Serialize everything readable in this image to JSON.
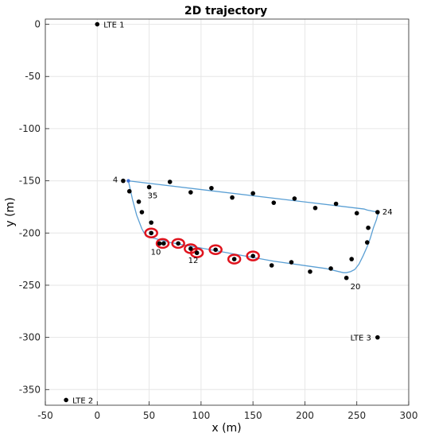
{
  "chart_data": {
    "type": "line",
    "title": "2D trajectory",
    "xlabel": "x (m)",
    "ylabel": "y (m)",
    "xlim": [
      -50,
      300
    ],
    "ylim": [
      -365,
      5
    ],
    "xticks": [
      -50,
      0,
      50,
      100,
      150,
      200,
      250,
      300
    ],
    "yticks": [
      0,
      -50,
      -100,
      -150,
      -200,
      -250,
      -300,
      -350
    ],
    "grid": true,
    "colors": {
      "trajectory": "#5a9fd4",
      "points": "#000000",
      "highlight": "#e0141e",
      "grid": "#e6e6e6",
      "axis": "#262626"
    },
    "series": [
      {
        "kind": "trajectory",
        "x": [
          30,
          257,
          260,
          270,
          271,
          270,
          269,
          266,
          263,
          260,
          256,
          252,
          248,
          244,
          240,
          237,
          220,
          170,
          120,
          70,
          47,
          43,
          38,
          34,
          30
        ],
        "y": [
          -150,
          -177,
          -178,
          -180,
          -181,
          -183,
          -187,
          -195,
          -205,
          -213,
          -222,
          -230,
          -235,
          -237,
          -238,
          -238,
          -234,
          -227,
          -218,
          -209,
          -203,
          -196,
          -183,
          -168,
          -150
        ]
      },
      {
        "kind": "start",
        "x": [
          30
        ],
        "y": [
          -150
        ]
      },
      {
        "kind": "points",
        "x": [
          25,
          31,
          50,
          70,
          90,
          110,
          130,
          150,
          170,
          190,
          210,
          230,
          250,
          270,
          261,
          260,
          245,
          240,
          225,
          205,
          187,
          168,
          150,
          132,
          114,
          96,
          90,
          78,
          64,
          60,
          52,
          52,
          43,
          40
        ],
        "y": [
          -150,
          -160,
          -156,
          -151,
          -161,
          -157,
          -166,
          -162,
          -171,
          -167,
          -176,
          -172,
          -181,
          -180,
          -195,
          -209,
          -225,
          -243,
          -234,
          -237,
          -228,
          -231,
          -222,
          -225,
          -216,
          -219,
          -215,
          -210,
          -210,
          -210,
          -200,
          -190,
          -180,
          -170
        ]
      },
      {
        "kind": "highlighted",
        "x": [
          52,
          63,
          78,
          90,
          96,
          114,
          132,
          150
        ],
        "y": [
          -200,
          -210,
          -210,
          -215,
          -219,
          -216,
          -225,
          -222
        ]
      }
    ],
    "point_labels": [
      {
        "text": "4",
        "x": 25,
        "y": -150
      },
      {
        "text": "35",
        "x": 50,
        "y": -156
      },
      {
        "text": "24",
        "x": 270,
        "y": -180
      },
      {
        "text": "10",
        "x": 60,
        "y": -210
      },
      {
        "text": "12",
        "x": 96,
        "y": -219
      },
      {
        "text": "20",
        "x": 240,
        "y": -243
      }
    ],
    "anchors": [
      {
        "name": "LTE 1",
        "x": 0,
        "y": 0
      },
      {
        "name": "LTE 2",
        "x": -30,
        "y": -360
      },
      {
        "name": "LTE 3",
        "x": 270,
        "y": -300
      }
    ]
  }
}
